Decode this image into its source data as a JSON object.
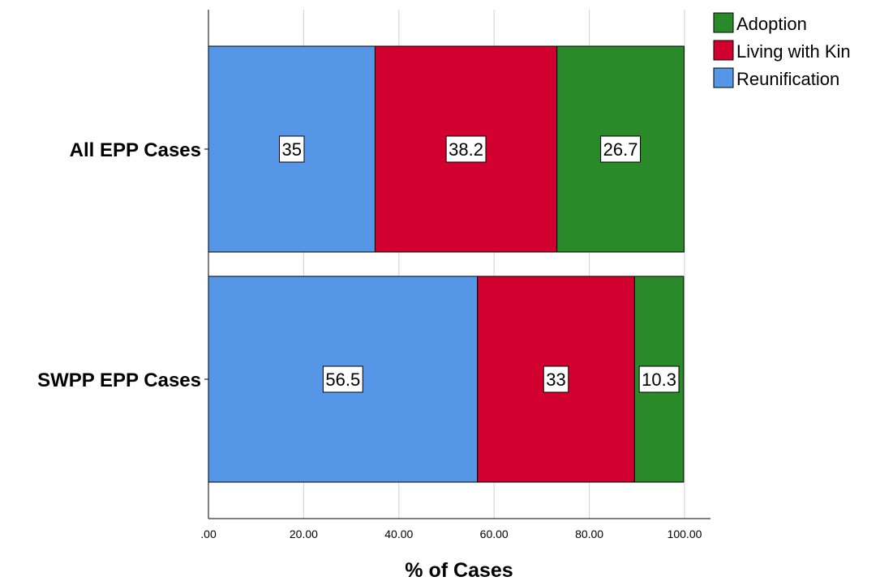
{
  "chart_data": {
    "type": "bar",
    "orientation": "horizontal",
    "stacked": true,
    "categories": [
      "All EPP Cases",
      "SWPP EPP Cases"
    ],
    "series": [
      {
        "name": "Reunification",
        "color": "#5596e6",
        "values": [
          35,
          56.5
        ],
        "labels": [
          "35",
          "56.5"
        ]
      },
      {
        "name": "Living with Kin",
        "color": "#d2002f",
        "values": [
          38.2,
          33
        ],
        "labels": [
          "38.2",
          "33"
        ]
      },
      {
        "name": "Adoption",
        "color": "#2a8a2a",
        "values": [
          26.7,
          10.3
        ],
        "labels": [
          "26.7",
          "10.3"
        ]
      }
    ],
    "xlabel": "% of Cases",
    "ylabel": "",
    "xlim": [
      0,
      100
    ],
    "xticks": [
      0,
      20,
      40,
      60,
      80,
      100
    ],
    "xtick_labels": [
      ".00",
      "20.00",
      "40.00",
      "60.00",
      "80.00",
      "100.00"
    ],
    "grid": "vertical",
    "legend": {
      "placement": "top-right",
      "entries": [
        "Adoption",
        "Living with Kin",
        "Reunification"
      ]
    }
  }
}
